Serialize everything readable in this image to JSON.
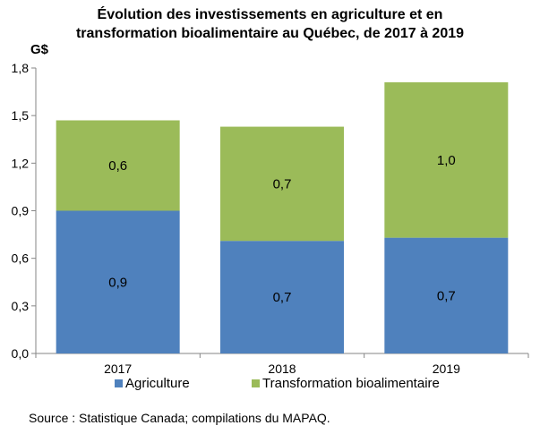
{
  "chart_data": {
    "type": "bar",
    "stacked": true,
    "title_line1": "Évolution des investissements en agriculture et en",
    "title_line2": "transformation bioalimentaire au Québec, de 2017 à 2019",
    "ylabel": "G$",
    "categories": [
      "2017",
      "2018",
      "2019"
    ],
    "series": [
      {
        "name": "Agriculture",
        "color": "#4F81BD",
        "values": [
          0.9,
          0.71,
          0.73
        ],
        "labels": [
          "0,9",
          "0,7",
          "0,7"
        ]
      },
      {
        "name": "Transformation bioalimentaire",
        "color": "#9BBB59",
        "values": [
          0.57,
          0.72,
          0.98
        ],
        "labels": [
          "0,6",
          "0,7",
          "1,0"
        ]
      }
    ],
    "ylim": [
      0,
      1.8
    ],
    "yticks": [
      0,
      0.3,
      0.6,
      0.9,
      1.2,
      1.5,
      1.8
    ],
    "ytick_labels": [
      "0,0",
      "0,3",
      "0,6",
      "0,9",
      "1,2",
      "1,5",
      "1,8"
    ],
    "grid": false,
    "legend_position": "bottom"
  },
  "source": "Source : Statistique Canada; compilations du MAPAQ."
}
